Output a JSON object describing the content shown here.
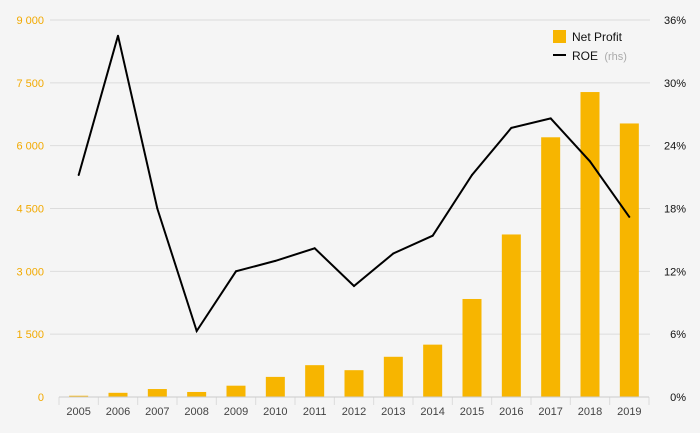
{
  "chart_data": {
    "type": "bar",
    "categories": [
      "2005",
      "2006",
      "2007",
      "2008",
      "2009",
      "2010",
      "2011",
      "2012",
      "2013",
      "2014",
      "2015",
      "2016",
      "2017",
      "2018",
      "2019"
    ],
    "series": [
      {
        "name": "Net Profit",
        "type": "bar",
        "axis": "left",
        "color": "#f7b500",
        "values": [
          30,
          100,
          190,
          120,
          270,
          480,
          760,
          640,
          960,
          1250,
          2340,
          3880,
          6200,
          7280,
          6530
        ]
      },
      {
        "name": "ROE",
        "name_suffix": "(rhs)",
        "type": "line",
        "axis": "right",
        "color": "#000000",
        "values": [
          21.2,
          34.5,
          18.0,
          6.3,
          12.0,
          13.0,
          14.2,
          10.6,
          13.7,
          15.4,
          21.2,
          25.7,
          26.6,
          22.5,
          17.2
        ]
      }
    ],
    "y_left": {
      "ylim": [
        0,
        9000
      ],
      "ticks": [
        "0",
        "1 500",
        "3 000",
        "4 500",
        "6 000",
        "7 500",
        "9 000"
      ]
    },
    "y_right": {
      "ylim": [
        0,
        36
      ],
      "ticks": [
        "0%",
        "6%",
        "12%",
        "18%",
        "24%",
        "30%",
        "36%"
      ]
    },
    "legend": {
      "position": "top-right"
    },
    "grid": true
  }
}
